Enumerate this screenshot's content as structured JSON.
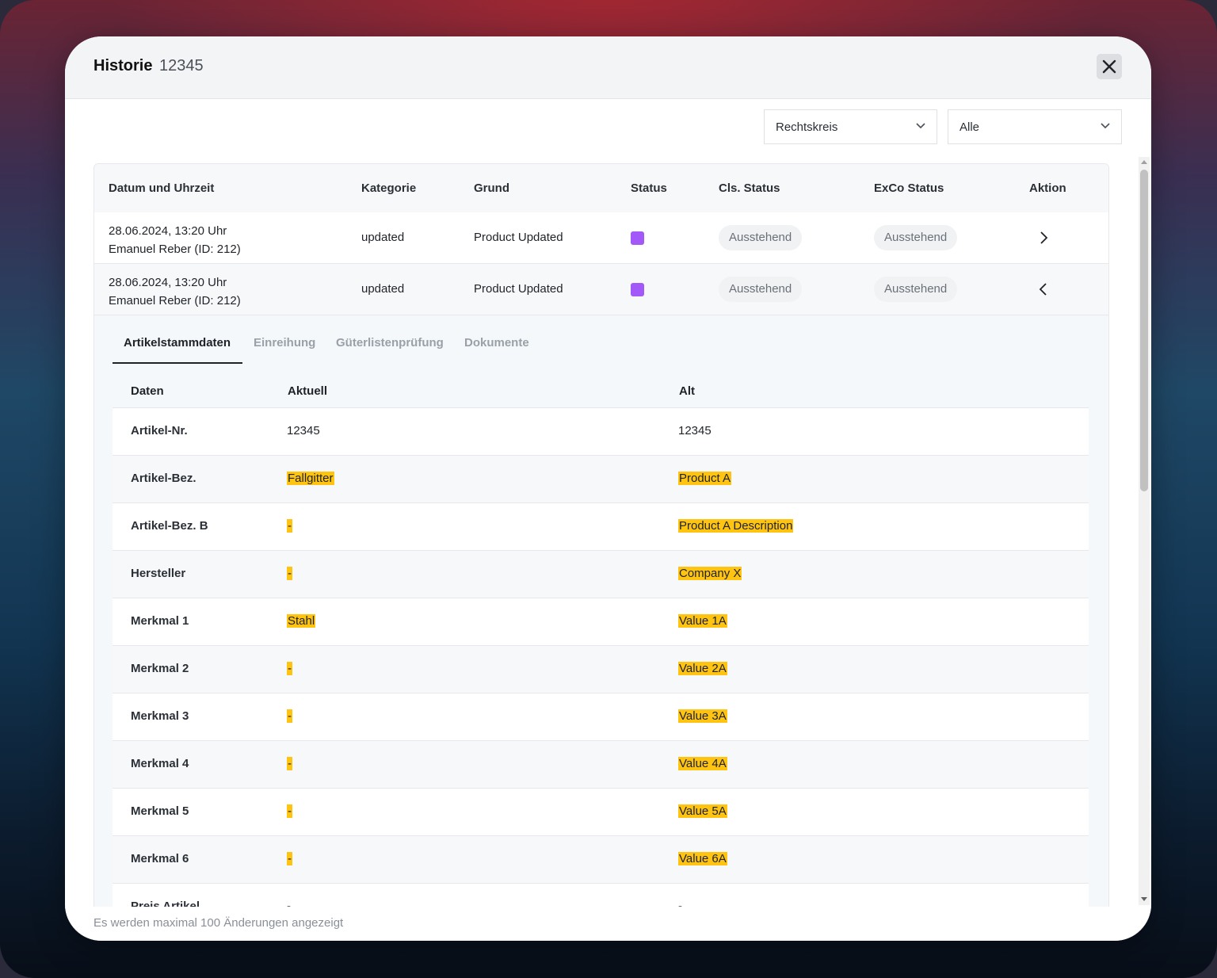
{
  "header": {
    "title": "Historie",
    "id": "12345"
  },
  "filters": {
    "jurisdiction": "Rechtskreis",
    "scope": "Alle"
  },
  "table": {
    "columns": [
      "Datum und Uhrzeit",
      "Kategorie",
      "Grund",
      "Status",
      "Cls. Status",
      "ExCo Status",
      "Aktion"
    ],
    "rows": [
      {
        "date": "28.06.2024, 13:20 Uhr",
        "user": "Emanuel Reber (ID: 212)",
        "category": "updated",
        "reason": "Product Updated",
        "status_color": "#a259f7",
        "cls_status": "Ausstehend",
        "exco_status": "Ausstehend"
      },
      {
        "date": "28.06.2024, 13:20 Uhr",
        "user": "Emanuel Reber (ID: 212)",
        "category": "updated",
        "reason": "Product Updated",
        "status_color": "#a259f7",
        "cls_status": "Ausstehend",
        "exco_status": "Ausstehend"
      }
    ]
  },
  "detail": {
    "tabs": [
      "Artikelstammdaten",
      "Einreihung",
      "Güterlistenprüfung",
      "Dokumente"
    ],
    "active_tab": "Artikelstammdaten",
    "columns": [
      "Daten",
      "Aktuell",
      "Alt"
    ],
    "rows": [
      {
        "label": "Artikel-Nr.",
        "current": "12345",
        "old": "12345"
      },
      {
        "label": "Artikel-Bez.",
        "current": "Fallgitter",
        "old": "Product A"
      },
      {
        "label": "Artikel-Bez. B",
        "current": "-",
        "old": "Product A Description"
      },
      {
        "label": "Hersteller",
        "current": "-",
        "old": "Company X"
      },
      {
        "label": "Merkmal 1",
        "current": "Stahl",
        "old": "Value 1A"
      },
      {
        "label": "Merkmal 2",
        "current": "-",
        "old": "Value 2A"
      },
      {
        "label": "Merkmal 3",
        "current": "-",
        "old": "Value 3A"
      },
      {
        "label": "Merkmal 4",
        "current": "-",
        "old": "Value 4A"
      },
      {
        "label": "Merkmal 5",
        "current": "-",
        "old": "Value 5A"
      },
      {
        "label": "Merkmal 6",
        "current": "-",
        "old": "Value 6A"
      },
      {
        "label": "Preis Artikel",
        "current": "-",
        "old": "-"
      }
    ]
  },
  "footer": {
    "note": "Es werden maximal 100 Änderungen angezeigt"
  },
  "colors": {
    "highlight": "#ffc412",
    "status_purple": "#a259f7"
  }
}
